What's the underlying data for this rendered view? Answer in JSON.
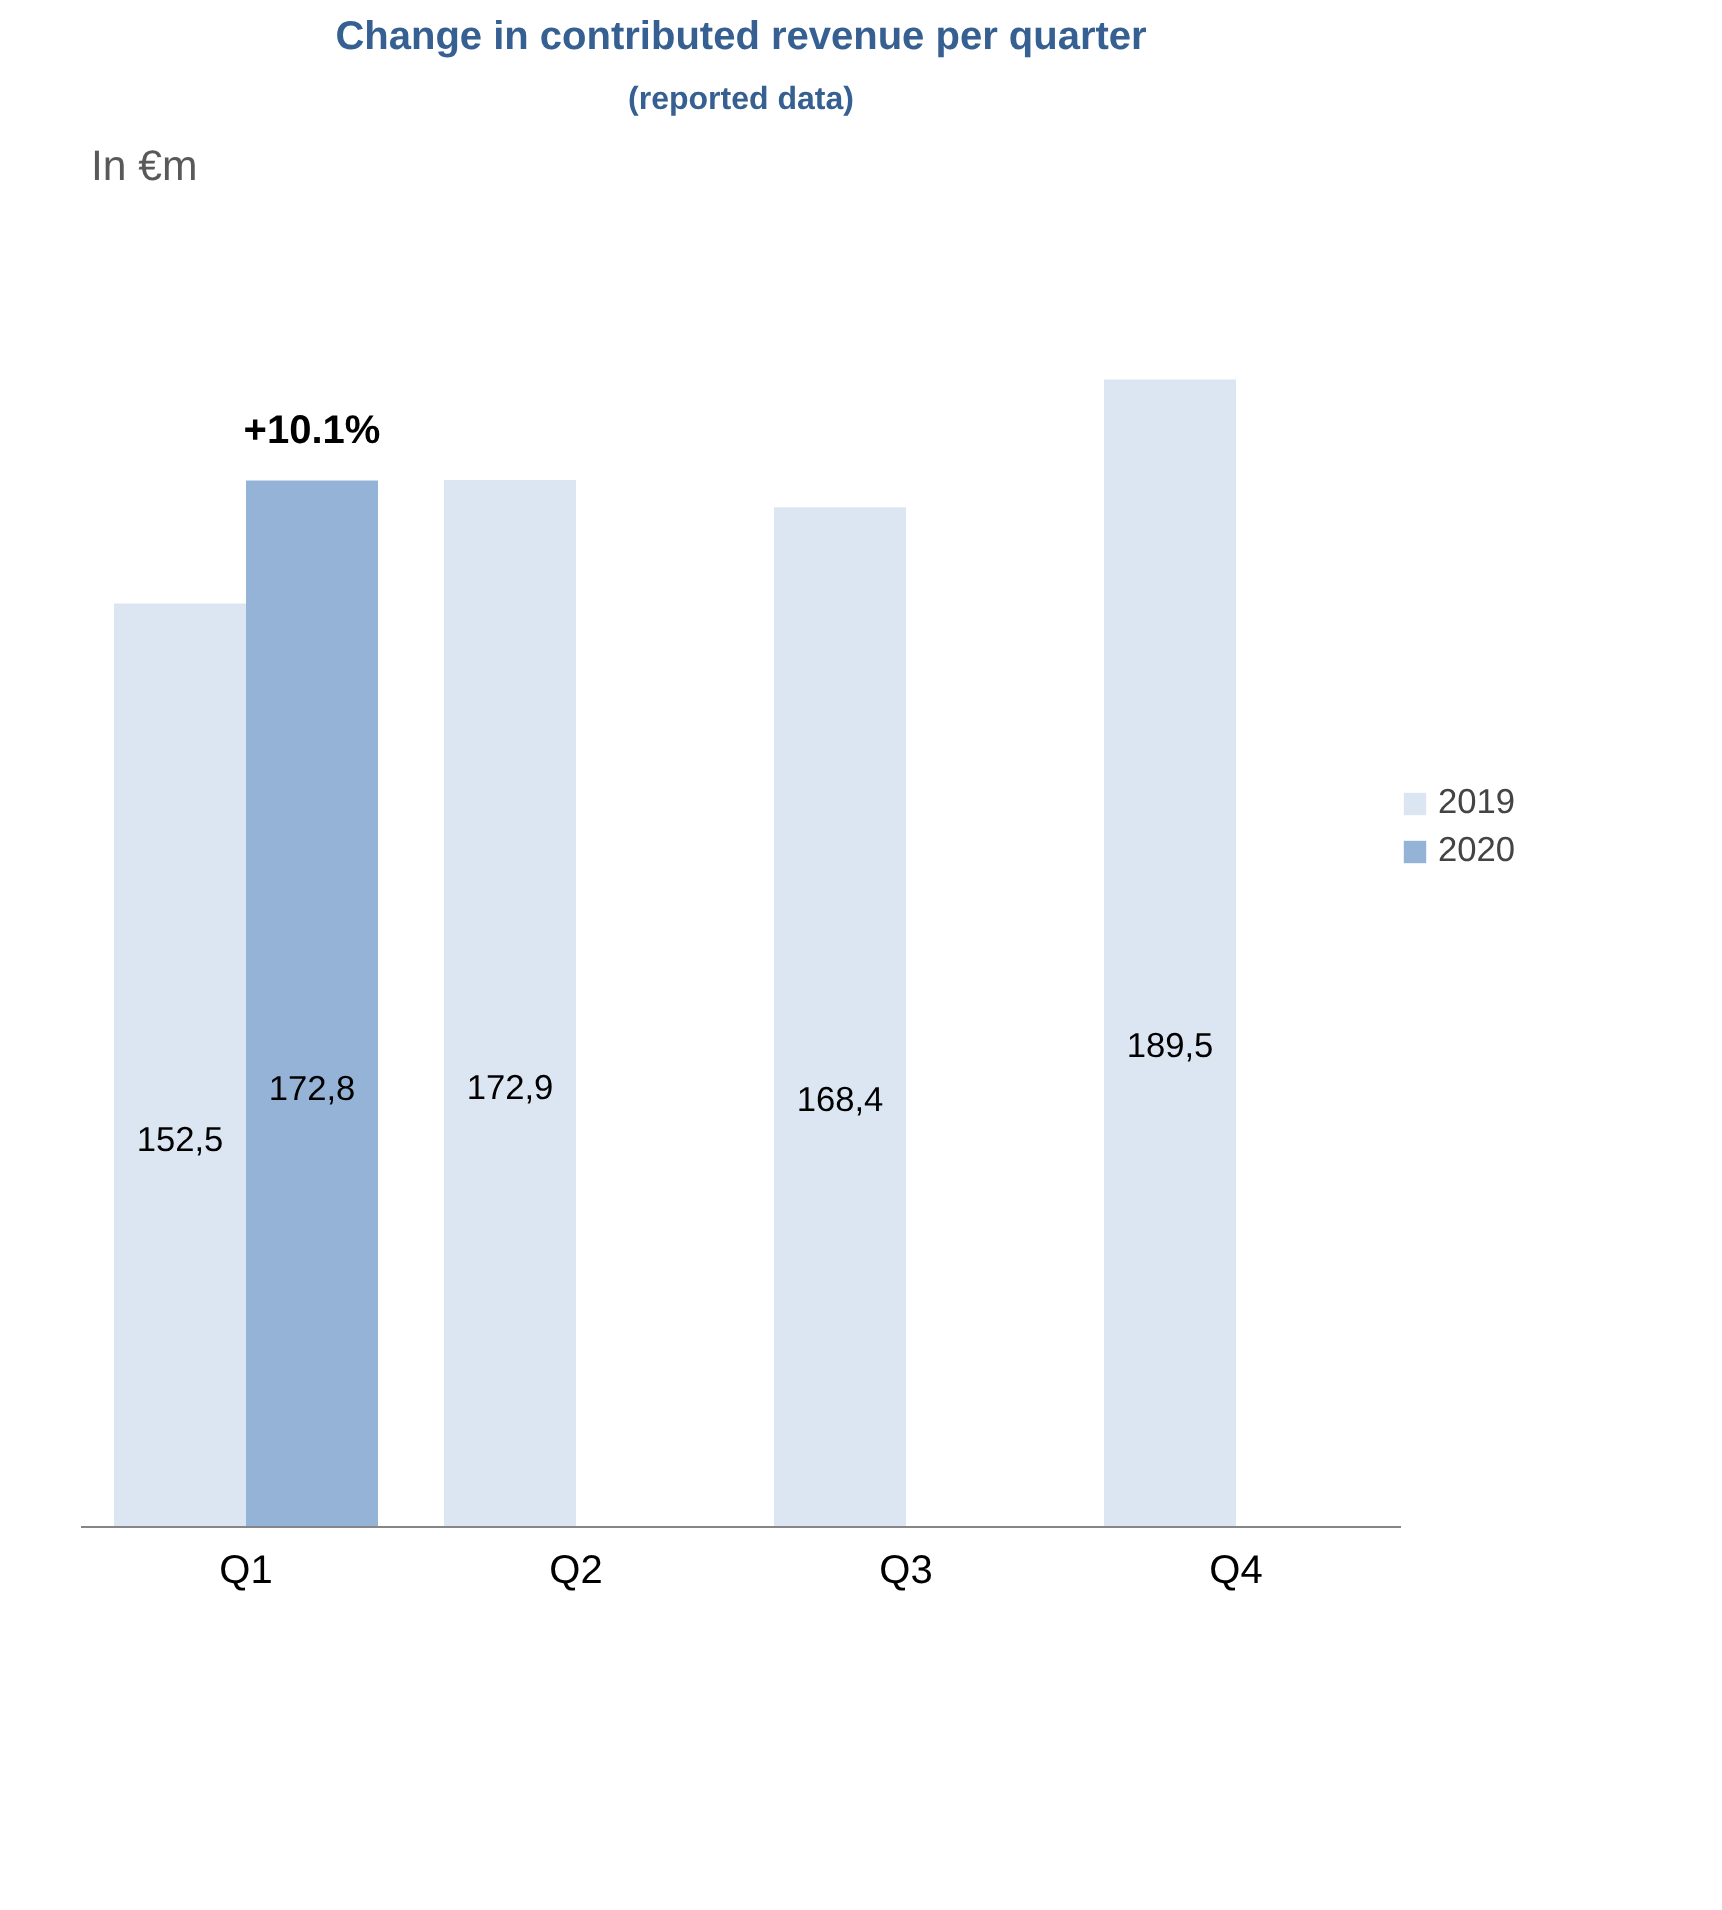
{
  "chart_data": {
    "type": "bar",
    "title": "Change in contributed revenue per quarter",
    "subtitle": "(reported data)",
    "categories": [
      "Q1",
      "Q2",
      "Q3",
      "Q4"
    ],
    "series": [
      {
        "name": "2019",
        "color": "#dce6f2",
        "values": [
          152.5,
          172.9,
          168.4,
          189.5
        ],
        "value_labels": [
          "152,5",
          "172,9",
          "168,4",
          "189,5"
        ]
      },
      {
        "name": "2020",
        "color": "#95b3d7",
        "values": [
          172.8,
          null,
          null,
          null
        ],
        "value_labels": [
          "172,8",
          null,
          null,
          null
        ]
      }
    ],
    "annotations": [
      "In €m",
      {
        "text": "+10.1%",
        "x": "Q1",
        "y": 172.8
      }
    ],
    "legend": "right",
    "grid": false
  }
}
